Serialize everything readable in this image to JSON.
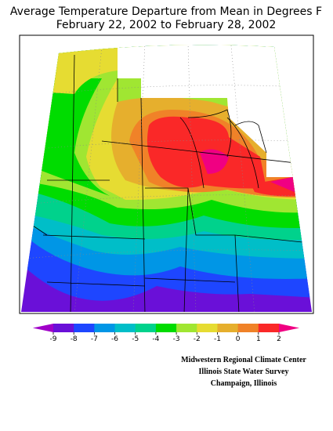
{
  "title": [
    "Average Temperature Departure from Mean in Degrees F",
    "February 22, 2002 to February 28, 2002"
  ],
  "legend": {
    "colors": [
      "#a000c8",
      "#6a10d8",
      "#1e46ff",
      "#0096e6",
      "#00bec8",
      "#00d28c",
      "#00dc00",
      "#a0e632",
      "#e6dc32",
      "#e6af2d",
      "#f08228",
      "#fa2828",
      "#f00082"
    ],
    "ticks": [
      -9,
      -8,
      -7,
      -6,
      -5,
      -4,
      -3,
      -2,
      -1,
      0,
      1,
      2
    ]
  },
  "credits": [
    "Midwestern Regional Climate Center",
    "Illinois State Water Survey",
    "Champaign, Illinois"
  ]
}
